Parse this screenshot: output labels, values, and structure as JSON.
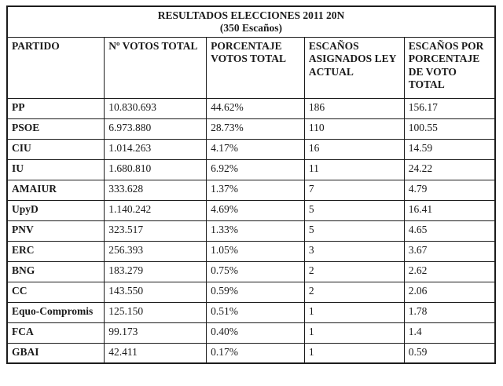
{
  "page": {
    "background": "#ffffff",
    "border_color": "#1c1c1c",
    "text_color": "#1a1a1a"
  },
  "table": {
    "title_line1": "RESULTADOS ELECCIONES 2011 20N",
    "title_line2": "(350 Escaños)",
    "columns": [
      "PARTIDO",
      "Nº VOTOS TOTAL",
      "PORCENTAJE VOTOS TOTAL",
      "ESCAÑOS ASIGNADOS LEY ACTUAL",
      "ESCAÑOS POR PORCENTAJE DE VOTO TOTAL"
    ],
    "rows": [
      {
        "party": "PP",
        "votes": "10.830.693",
        "pct": "44.62%",
        "seats_law": "186",
        "seats_prop": "156.17"
      },
      {
        "party": "PSOE",
        "votes": "6.973.880",
        "pct": "28.73%",
        "seats_law": "110",
        "seats_prop": "100.55"
      },
      {
        "party": "CIU",
        "votes": "1.014.263",
        "pct": "4.17%",
        "seats_law": "16",
        "seats_prop": "14.59"
      },
      {
        "party": "IU",
        "votes": "1.680.810",
        "pct": "6.92%",
        "seats_law": "11",
        "seats_prop": "24.22"
      },
      {
        "party": "AMAIUR",
        "votes": "333.628",
        "pct": "1.37%",
        "seats_law": "7",
        "seats_prop": "4.79"
      },
      {
        "party": "UpyD",
        "votes": "1.140.242",
        "pct": "4.69%",
        "seats_law": "5",
        "seats_prop": "16.41"
      },
      {
        "party": "PNV",
        "votes": "323.517",
        "pct": "1.33%",
        "seats_law": "5",
        "seats_prop": "4.65"
      },
      {
        "party": "ERC",
        "votes": "256.393",
        "pct": "1.05%",
        "seats_law": "3",
        "seats_prop": "3.67"
      },
      {
        "party": "BNG",
        "votes": "183.279",
        "pct": "0.75%",
        "seats_law": "2",
        "seats_prop": "2.62"
      },
      {
        "party": "CC",
        "votes": "143.550",
        "pct": "0.59%",
        "seats_law": "2",
        "seats_prop": "2.06"
      },
      {
        "party": "Equo-Compromis",
        "votes": "125.150",
        "pct": "0.51%",
        "seats_law": "1",
        "seats_prop": "1.78"
      },
      {
        "party": "FCA",
        "votes": "99.173",
        "pct": "0.40%",
        "seats_law": "1",
        "seats_prop": "1.4"
      },
      {
        "party": "GBAI",
        "votes": "42.411",
        "pct": "0.17%",
        "seats_law": "1",
        "seats_prop": "0.59"
      }
    ]
  }
}
